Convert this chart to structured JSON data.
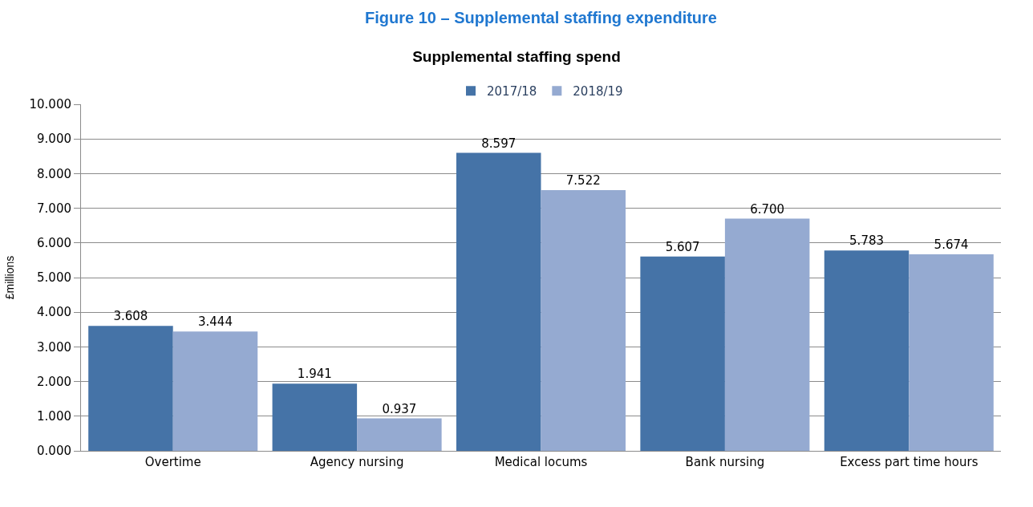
{
  "chart_data": {
    "type": "bar",
    "title": "Supplemental staffing spend",
    "ylabel": "£millions",
    "annotations": [
      "Figure 10 – Supplemental staffing expenditure"
    ],
    "categories": [
      "Overtime",
      "Agency nursing",
      "Medical locums",
      "Bank nursing",
      "Excess part time hours"
    ],
    "series": [
      {
        "name": "2017/18",
        "color": "#4573a7",
        "values": [
          3.608,
          1.941,
          8.597,
          5.607,
          5.783
        ],
        "value_labels": [
          "3.608",
          "1.941",
          "8.597",
          "5.607",
          "5.783"
        ]
      },
      {
        "name": "2018/19",
        "color": "#95aad1",
        "values": [
          3.444,
          0.937,
          7.522,
          6.7,
          5.674
        ],
        "value_labels": [
          "3.444",
          "0.937",
          "7.522",
          "6.700",
          "5.674"
        ]
      }
    ],
    "ylim": [
      0,
      10
    ],
    "yticks": [
      {
        "value": 0,
        "label": "0.000"
      },
      {
        "value": 1,
        "label": "1.000"
      },
      {
        "value": 2,
        "label": "2.000"
      },
      {
        "value": 3,
        "label": "3.000"
      },
      {
        "value": 4,
        "label": "4.000"
      },
      {
        "value": 5,
        "label": "5.000"
      },
      {
        "value": 6,
        "label": "6.000"
      },
      {
        "value": 7,
        "label": "7.000"
      },
      {
        "value": 8,
        "label": "8.000"
      },
      {
        "value": 9,
        "label": "9.000"
      },
      {
        "value": 10,
        "label": "10.000"
      }
    ],
    "grid": "y",
    "legend": "top"
  }
}
